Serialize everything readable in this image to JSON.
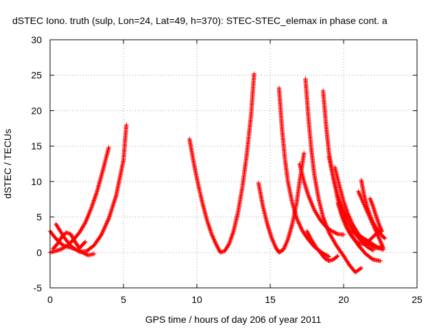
{
  "chart_data": {
    "type": "scatter",
    "title": "dSTEC Iono. truth (sulp, Lon=24, Lat=49, h=370): STEC-STEC_elemax in phase cont. a",
    "xlabel": "GPS time / hours of day 206 of year 2011",
    "ylabel": "dSTEC  / TECUs",
    "xlim": [
      0,
      25
    ],
    "ylim": [
      -5,
      30
    ],
    "xticks": [
      0,
      5,
      10,
      15,
      20,
      25
    ],
    "yticks": [
      -5,
      0,
      5,
      10,
      15,
      20,
      25,
      30
    ],
    "grid": true,
    "marker": "plus",
    "color": "#ff0000",
    "series": [
      {
        "x": [
          0.0,
          0.4,
          0.8,
          1.2,
          1.6,
          2.0,
          2.4,
          2.8,
          3.2,
          3.6,
          4.0
        ],
        "y": [
          0.0,
          0.2,
          0.5,
          1.0,
          1.8,
          2.8,
          4.2,
          6.2,
          8.6,
          11.6,
          14.8
        ]
      },
      {
        "x": [
          0.4,
          0.7,
          1.0,
          1.3,
          1.6,
          2.0,
          2.5,
          3.0,
          3.5,
          4.0,
          4.5,
          5.0,
          5.2
        ],
        "y": [
          4.0,
          3.0,
          2.0,
          1.2,
          0.6,
          0.1,
          0.2,
          1.0,
          2.5,
          4.8,
          8.0,
          13.0,
          18.0
        ]
      },
      {
        "x": [
          0.0,
          0.3,
          0.6,
          0.9,
          1.2,
          1.5,
          1.8,
          2.2,
          2.6,
          3.0
        ],
        "y": [
          3.0,
          2.2,
          1.5,
          1.0,
          0.8,
          0.6,
          0.4,
          0.0,
          -0.4,
          -0.2
        ]
      },
      {
        "x": [
          0.2,
          0.5,
          0.8,
          1.1,
          1.4,
          1.7,
          2.0,
          2.4
        ],
        "y": [
          0.5,
          1.2,
          2.2,
          2.8,
          2.6,
          1.5,
          0.6,
          1.5
        ]
      },
      {
        "x": [
          9.5,
          9.8,
          10.1,
          10.4,
          10.7,
          11.0,
          11.3,
          11.6,
          11.9,
          12.2,
          12.5,
          12.8,
          13.1,
          13.4,
          13.7,
          13.9
        ],
        "y": [
          16.0,
          12.5,
          9.5,
          6.8,
          4.5,
          2.6,
          1.2,
          0.0,
          0.2,
          1.2,
          3.0,
          5.6,
          9.2,
          13.8,
          19.5,
          25.2
        ]
      },
      {
        "x": [
          14.2,
          14.5,
          14.8,
          15.1,
          15.4,
          15.6,
          15.9,
          16.2,
          16.5,
          16.8,
          17.0,
          17.3
        ],
        "y": [
          9.8,
          6.5,
          4.0,
          2.0,
          0.6,
          0.0,
          0.4,
          1.8,
          4.0,
          7.0,
          10.0,
          14.0
        ]
      },
      {
        "x": [
          15.6,
          15.8,
          16.0,
          16.2,
          16.5,
          16.8,
          17.2,
          17.6,
          18.0,
          18.5,
          19.0
        ],
        "y": [
          23.2,
          17.5,
          13.2,
          10.0,
          7.0,
          4.8,
          3.0,
          1.8,
          0.8,
          0.0,
          -0.6
        ]
      },
      {
        "x": [
          17.4,
          17.6,
          17.8,
          18.0,
          18.3,
          18.6,
          19.0,
          19.5,
          20.0,
          20.4,
          20.8,
          21.2
        ],
        "y": [
          24.5,
          19.0,
          14.5,
          11.0,
          7.5,
          5.0,
          2.8,
          1.0,
          -0.5,
          -1.8,
          -2.8,
          -2.2
        ]
      },
      {
        "x": [
          18.6,
          18.8,
          19.0,
          19.3,
          19.6,
          20.0,
          20.5,
          21.0,
          21.5,
          22.0,
          22.5
        ],
        "y": [
          22.8,
          18.0,
          14.0,
          10.5,
          7.5,
          4.8,
          2.6,
          1.0,
          -0.2,
          -1.0,
          -1.2
        ]
      },
      {
        "x": [
          17.0,
          17.3,
          17.6,
          18.0,
          18.4,
          18.8,
          19.2,
          19.6,
          20.0
        ],
        "y": [
          12.5,
          10.0,
          8.0,
          6.0,
          4.6,
          3.6,
          3.0,
          2.6,
          2.5
        ]
      },
      {
        "x": [
          19.0,
          19.3,
          19.6,
          20.0,
          20.4,
          20.8,
          21.2,
          21.6,
          22.0
        ],
        "y": [
          13.5,
          10.5,
          8.0,
          5.8,
          4.0,
          2.6,
          1.6,
          0.8,
          0.3
        ]
      },
      {
        "x": [
          19.4,
          19.7,
          20.0,
          20.3,
          20.6,
          21.0,
          21.4,
          21.8,
          22.2,
          22.6
        ],
        "y": [
          12.0,
          9.5,
          7.2,
          5.4,
          4.0,
          2.6,
          1.6,
          1.0,
          0.6,
          0.8
        ]
      },
      {
        "x": [
          17.5,
          17.8,
          18.1,
          18.4,
          18.7,
          19.0,
          19.3,
          19.6
        ],
        "y": [
          3.0,
          1.8,
          0.8,
          0.0,
          -0.8,
          -1.2,
          -1.0,
          -0.5
        ]
      },
      {
        "x": [
          19.6,
          19.9,
          20.2,
          20.5,
          20.8,
          21.1,
          21.4,
          21.7,
          22.0,
          22.3,
          22.6
        ],
        "y": [
          7.0,
          5.0,
          3.5,
          2.4,
          1.6,
          1.2,
          1.2,
          1.6,
          2.2,
          2.8,
          3.0
        ]
      },
      {
        "x": [
          21.0,
          21.3,
          21.6,
          21.9,
          22.2,
          22.5,
          22.7
        ],
        "y": [
          8.6,
          7.2,
          5.8,
          4.4,
          3.0,
          1.6,
          0.6
        ]
      },
      {
        "x": [
          21.2,
          21.4,
          21.6,
          21.8,
          22.0,
          22.3,
          22.6,
          22.8
        ],
        "y": [
          10.2,
          8.0,
          6.4,
          5.2,
          4.2,
          3.2,
          2.4,
          2.0
        ]
      },
      {
        "x": [
          21.8,
          22.0,
          22.2,
          22.4,
          22.6
        ],
        "y": [
          7.6,
          6.5,
          5.2,
          4.0,
          3.0
        ]
      },
      {
        "x": [
          20.6,
          20.9,
          21.2,
          21.5,
          21.8,
          22.1,
          22.4,
          22.7
        ],
        "y": [
          3.0,
          2.6,
          2.2,
          1.8,
          1.4,
          1.0,
          0.6,
          0.4
        ]
      }
    ]
  }
}
